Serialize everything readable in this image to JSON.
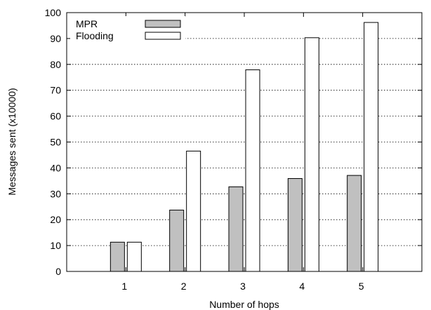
{
  "chart_data": {
    "type": "bar",
    "xlabel": "Number of hops",
    "ylabel": "Messages sent (x10000)",
    "categories": [
      "1",
      "2",
      "3",
      "4",
      "5"
    ],
    "ylim": [
      0,
      100
    ],
    "yticks": [
      "0",
      "10",
      "20",
      "30",
      "40",
      "50",
      "60",
      "70",
      "80",
      "90",
      "100"
    ],
    "grid": "horizontal dotted",
    "legend_position": "top-left",
    "series": [
      {
        "name": "MPR",
        "values": [
          11.3,
          23.7,
          32.7,
          35.9,
          37.1
        ],
        "color": "#c0c0c0"
      },
      {
        "name": "Flooding",
        "values": [
          11.3,
          46.5,
          77.9,
          90.3,
          96.2
        ],
        "color": "#ffffff"
      }
    ]
  }
}
